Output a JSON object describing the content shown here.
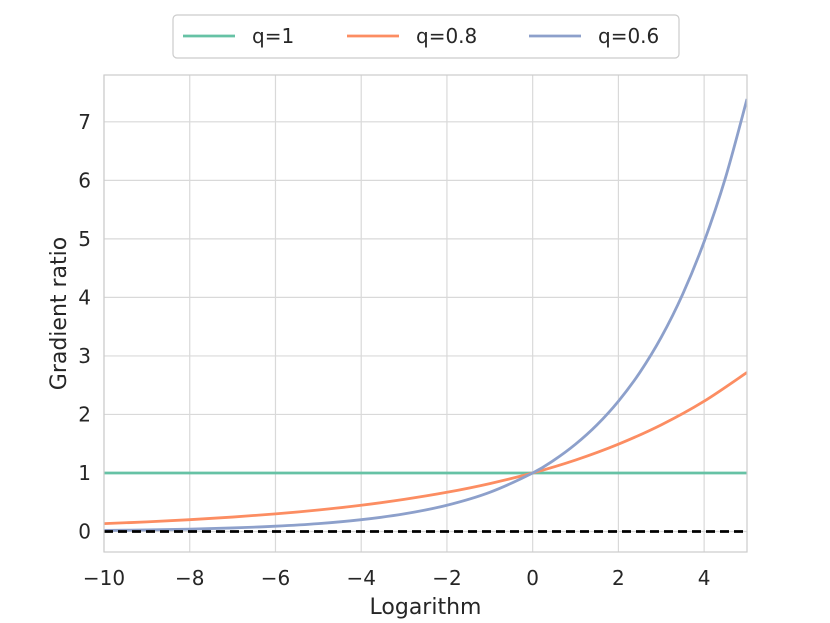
{
  "chart_data": {
    "type": "line",
    "xlabel": "Logarithm",
    "ylabel": "Gradient ratio",
    "xlim": [
      -10,
      5
    ],
    "ylim": [
      -0.35,
      7.8
    ],
    "x_ticks": [
      -10,
      -8,
      -6,
      -4,
      -2,
      0,
      2,
      4
    ],
    "x_tick_labels": [
      "−10",
      "−8",
      "−6",
      "−4",
      "−2",
      "0",
      "2",
      "4"
    ],
    "y_ticks": [
      0,
      1,
      2,
      3,
      4,
      5,
      6,
      7
    ],
    "y_tick_labels": [
      "0",
      "1",
      "2",
      "3",
      "4",
      "5",
      "6",
      "7"
    ],
    "grid": true,
    "legend_position": "top-center",
    "series": [
      {
        "name": "q=1",
        "color": "#66c2a5",
        "x": [
          -10,
          -8,
          -6,
          -4,
          -2,
          0,
          2,
          4,
          5
        ],
        "y": [
          1,
          1,
          1,
          1,
          1,
          1,
          1,
          1,
          1
        ]
      },
      {
        "name": "q=0.8",
        "color": "#fc8d62",
        "x": [
          -10,
          -9,
          -8,
          -7,
          -6,
          -5,
          -4,
          -3,
          -2,
          -1,
          0,
          1,
          2,
          3,
          4,
          5
        ],
        "y": [
          0.135,
          0.165,
          0.202,
          0.247,
          0.301,
          0.368,
          0.449,
          0.549,
          0.67,
          0.819,
          1.0,
          1.221,
          1.492,
          1.822,
          2.226,
          2.718
        ]
      },
      {
        "name": "q=0.6",
        "color": "#8da0cb",
        "x": [
          -10,
          -9,
          -8,
          -7,
          -6,
          -5,
          -4,
          -3,
          -2,
          -1,
          0,
          0.5,
          1,
          1.5,
          2,
          2.5,
          3,
          3.5,
          4,
          4.5,
          5
        ],
        "y": [
          0.018,
          0.027,
          0.041,
          0.061,
          0.091,
          0.135,
          0.202,
          0.301,
          0.449,
          0.67,
          1.0,
          1.221,
          1.492,
          1.822,
          2.226,
          2.718,
          3.32,
          4.055,
          4.953,
          6.05,
          7.389
        ]
      }
    ],
    "reference_line": {
      "y": 0,
      "color": "#000000",
      "style": "dashed"
    }
  }
}
